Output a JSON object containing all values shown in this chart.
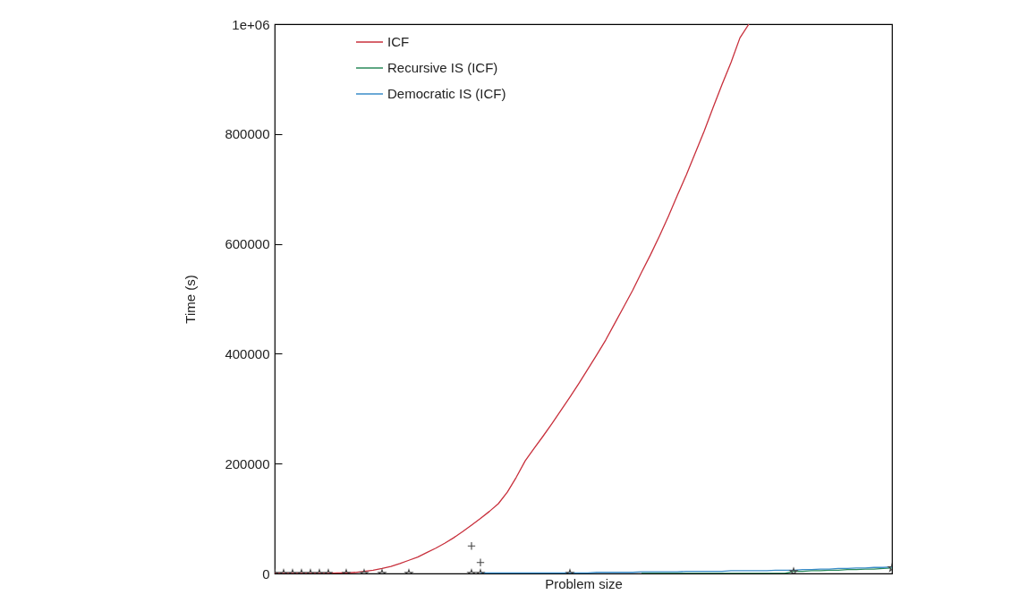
{
  "chart_data": {
    "type": "line",
    "xlabel": "Problem size",
    "ylabel": "Time (s)",
    "categories": [
      null,
      null,
      null,
      null,
      null,
      null,
      null,
      null,
      null,
      null,
      null,
      null,
      null,
      null,
      null,
      null,
      null,
      null,
      null,
      null,
      null,
      null,
      null,
      null,
      null,
      null,
      null,
      null,
      null,
      null,
      null,
      null,
      null,
      null,
      null,
      null,
      null,
      null,
      null,
      null,
      null,
      null,
      null,
      null,
      null,
      null,
      null,
      null,
      null,
      null,
      null,
      null,
      null,
      null,
      null,
      null,
      null,
      null,
      null,
      null,
      null,
      null,
      null,
      null,
      null,
      null,
      null,
      null,
      null,
      null
    ],
    "series": [
      {
        "name": "ICF",
        "color": "#c8303c",
        "values": [
          0,
          0,
          0,
          0,
          0,
          0,
          0,
          1000,
          1000,
          2000,
          4000,
          6000,
          9000,
          13000,
          18000,
          24000,
          30000,
          38000,
          46000,
          55000,
          65000,
          76000,
          88000,
          100000,
          113000,
          127000,
          148000,
          175000,
          205000,
          228000,
          250000,
          273000,
          297000,
          321000,
          346000,
          372000,
          398000,
          425000,
          455000,
          485000,
          515000,
          548000,
          580000,
          614000,
          650000,
          688000,
          725000,
          765000,
          805000,
          848000,
          890000,
          930000,
          975000,
          1000000,
          null,
          null,
          null,
          null,
          null,
          null,
          null,
          null,
          null,
          null,
          null,
          null,
          null,
          null,
          null,
          null
        ]
      },
      {
        "name": "Recursive IS (ICF)",
        "color": "#2a8a5a",
        "values": [
          null,
          null,
          null,
          null,
          null,
          null,
          null,
          null,
          null,
          null,
          null,
          null,
          null,
          null,
          null,
          null,
          null,
          null,
          null,
          null,
          null,
          null,
          null,
          null,
          null,
          null,
          null,
          null,
          null,
          null,
          null,
          null,
          null,
          null,
          null,
          null,
          null,
          null,
          null,
          null,
          null,
          0,
          0,
          0,
          0,
          0,
          0,
          0,
          0,
          0,
          0,
          0,
          0,
          0,
          0,
          0,
          0,
          0,
          4000,
          4000,
          5000,
          5000,
          6000,
          6000,
          7000,
          7000,
          8000,
          8000,
          9000,
          10000
        ]
      },
      {
        "name": "Democratic IS (ICF)",
        "color": "#3a8cc8",
        "values": [
          null,
          null,
          null,
          null,
          null,
          null,
          null,
          null,
          null,
          null,
          null,
          null,
          null,
          null,
          null,
          null,
          null,
          null,
          null,
          null,
          null,
          null,
          null,
          1000,
          1000,
          1000,
          1000,
          1000,
          1000,
          1000,
          1000,
          1000,
          1000,
          1000,
          1000,
          1000,
          2000,
          2000,
          2000,
          2000,
          2000,
          3000,
          3000,
          3000,
          3000,
          3000,
          4000,
          4000,
          4000,
          4000,
          4000,
          5000,
          5000,
          5000,
          5000,
          5000,
          6000,
          6000,
          6000,
          7000,
          7000,
          8000,
          8000,
          9000,
          9000,
          10000,
          10000,
          11000,
          11000,
          12000
        ]
      },
      {
        "type": "scatter",
        "marker": "cross",
        "color": "#444444",
        "values": [
          null,
          null,
          null,
          null,
          null,
          null,
          null,
          null,
          null,
          null,
          null,
          null,
          null,
          null,
          null,
          null,
          null,
          null,
          null,
          null,
          null,
          null,
          50000,
          20000,
          null,
          null,
          null,
          null,
          null,
          null,
          null,
          null,
          null,
          null,
          null,
          null,
          null,
          null,
          null,
          null,
          null,
          null,
          null,
          null,
          null,
          null,
          null,
          null,
          null,
          null,
          null,
          null,
          null,
          null,
          null,
          null,
          null,
          null,
          null,
          null,
          null,
          null,
          null,
          null,
          null,
          null,
          null,
          null,
          null,
          null
        ]
      },
      {
        "type": "scatter",
        "marker": "star",
        "color": "#444444",
        "values": [
          0,
          0,
          0,
          0,
          0,
          0,
          0,
          null,
          0,
          null,
          0,
          null,
          0,
          null,
          null,
          0,
          null,
          null,
          null,
          null,
          null,
          null,
          0,
          0,
          null,
          null,
          null,
          null,
          null,
          null,
          null,
          null,
          null,
          0,
          null,
          null,
          null,
          null,
          null,
          null,
          null,
          null,
          null,
          null,
          null,
          null,
          null,
          null,
          null,
          null,
          null,
          null,
          null,
          null,
          null,
          null,
          null,
          null,
          3000,
          null,
          null,
          null,
          null,
          null,
          null,
          null,
          null,
          null,
          null,
          10000
        ]
      }
    ],
    "ylim": [
      0,
      1000000
    ],
    "yticks": [
      0,
      200000,
      400000,
      600000,
      800000,
      {
        "value": 1000000,
        "label": "1e+06"
      }
    ],
    "tick_labels": "y",
    "grid": false,
    "legend": "top",
    "line_style": "solid"
  }
}
